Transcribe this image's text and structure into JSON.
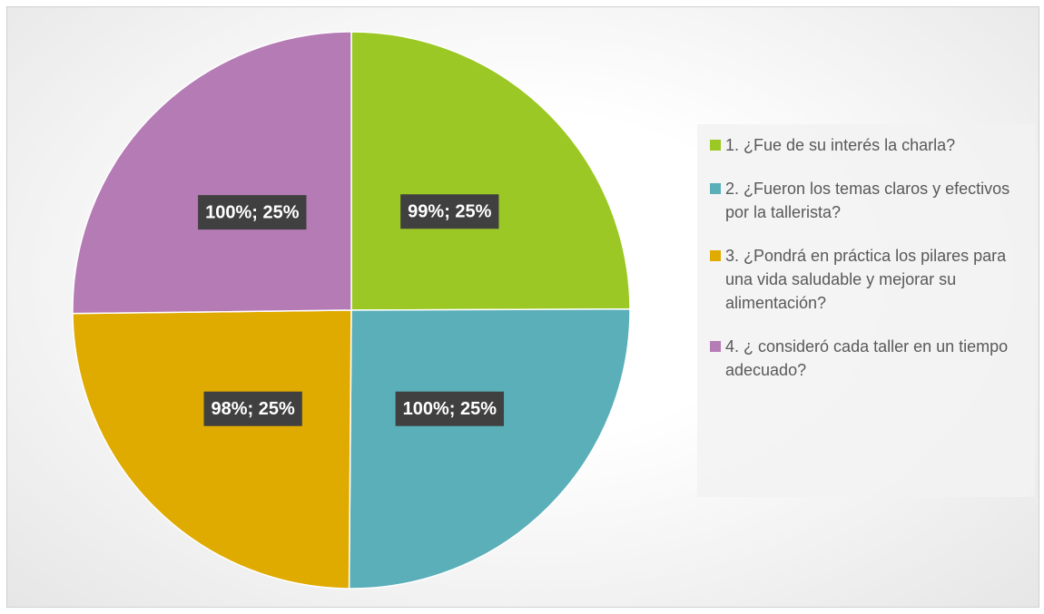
{
  "chart_data": {
    "type": "pie",
    "categories": [
      "1. ¿Fue de su interés la charla?",
      "2.\t¿Fueron los temas claros y efectivos por la tallerista?",
      "3. ¿Pondrá en práctica los pilares para una vida saludable y mejorar su alimentación?",
      "4.\t¿ consideró cada taller en un tiempo adecuado?"
    ],
    "values": [
      99,
      100,
      98,
      100
    ],
    "value_labels": [
      "99%; 25%",
      "100%; 25%",
      "98%; 25%",
      "100%; 25%"
    ],
    "colors": [
      "#9bc824",
      "#5aafb9",
      "#e0ab00",
      "#b57bb5"
    ],
    "legend": "right"
  }
}
